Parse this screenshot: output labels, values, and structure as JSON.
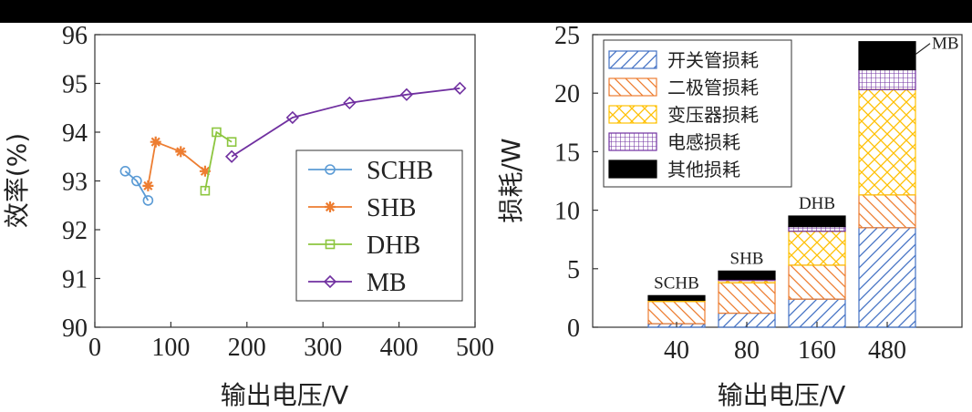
{
  "chart_data": [
    {
      "type": "line",
      "xlabel": "输出电压/V",
      "ylabel": "效率(%)",
      "xlim": [
        0,
        500
      ],
      "ylim": [
        90,
        96
      ],
      "xticks": [
        0,
        100,
        200,
        300,
        400,
        500
      ],
      "yticks": [
        90,
        91,
        92,
        93,
        94,
        95,
        96
      ],
      "legend_position": "bottom-right",
      "series": [
        {
          "name": "SCHB",
          "color": "#5b9bd5",
          "marker": "circle",
          "x": [
            40,
            55,
            70
          ],
          "y": [
            93.2,
            93.0,
            92.6
          ]
        },
        {
          "name": "SHB",
          "color": "#ed7d31",
          "marker": "asterisk",
          "x": [
            70,
            80,
            113,
            145
          ],
          "y": [
            92.9,
            93.8,
            93.6,
            93.2
          ]
        },
        {
          "name": "DHB",
          "color": "#8dc63f",
          "marker": "square",
          "x": [
            145,
            160,
            180
          ],
          "y": [
            92.8,
            94.0,
            93.8
          ]
        },
        {
          "name": "MB",
          "color": "#7030a0",
          "marker": "diamond",
          "x": [
            180,
            260,
            335,
            410,
            480
          ],
          "y": [
            93.5,
            94.3,
            94.6,
            94.77,
            94.9
          ]
        }
      ]
    },
    {
      "type": "bar",
      "stacked": true,
      "xlabel": "输出电压/V",
      "ylabel": "损耗/W",
      "ylim": [
        0,
        25
      ],
      "yticks": [
        0,
        5,
        10,
        15,
        20,
        25
      ],
      "categories": [
        "40",
        "80",
        "160",
        "480"
      ],
      "bar_labels": [
        "SCHB",
        "SHB",
        "DHB",
        "MB"
      ],
      "legend_position": "top-left",
      "series": [
        {
          "name": "开关管损耗",
          "color": "#4472c4",
          "pattern": "hatch-right",
          "values": [
            0.3,
            1.2,
            2.4,
            8.5
          ]
        },
        {
          "name": "二极管损耗",
          "color": "#ed7d31",
          "pattern": "hatch-left",
          "values": [
            1.9,
            2.6,
            2.9,
            2.8
          ]
        },
        {
          "name": "变压器损耗",
          "color": "#ffc000",
          "pattern": "crosshatch",
          "values": [
            0.1,
            0.2,
            2.9,
            9.0
          ]
        },
        {
          "name": "电感损耗",
          "color": "#7030a0",
          "pattern": "grid",
          "values": [
            0.0,
            0.1,
            0.4,
            1.7
          ]
        },
        {
          "name": "其他损耗",
          "color": "#000000",
          "pattern": "solid",
          "values": [
            0.4,
            0.7,
            0.9,
            2.4
          ]
        }
      ]
    }
  ]
}
